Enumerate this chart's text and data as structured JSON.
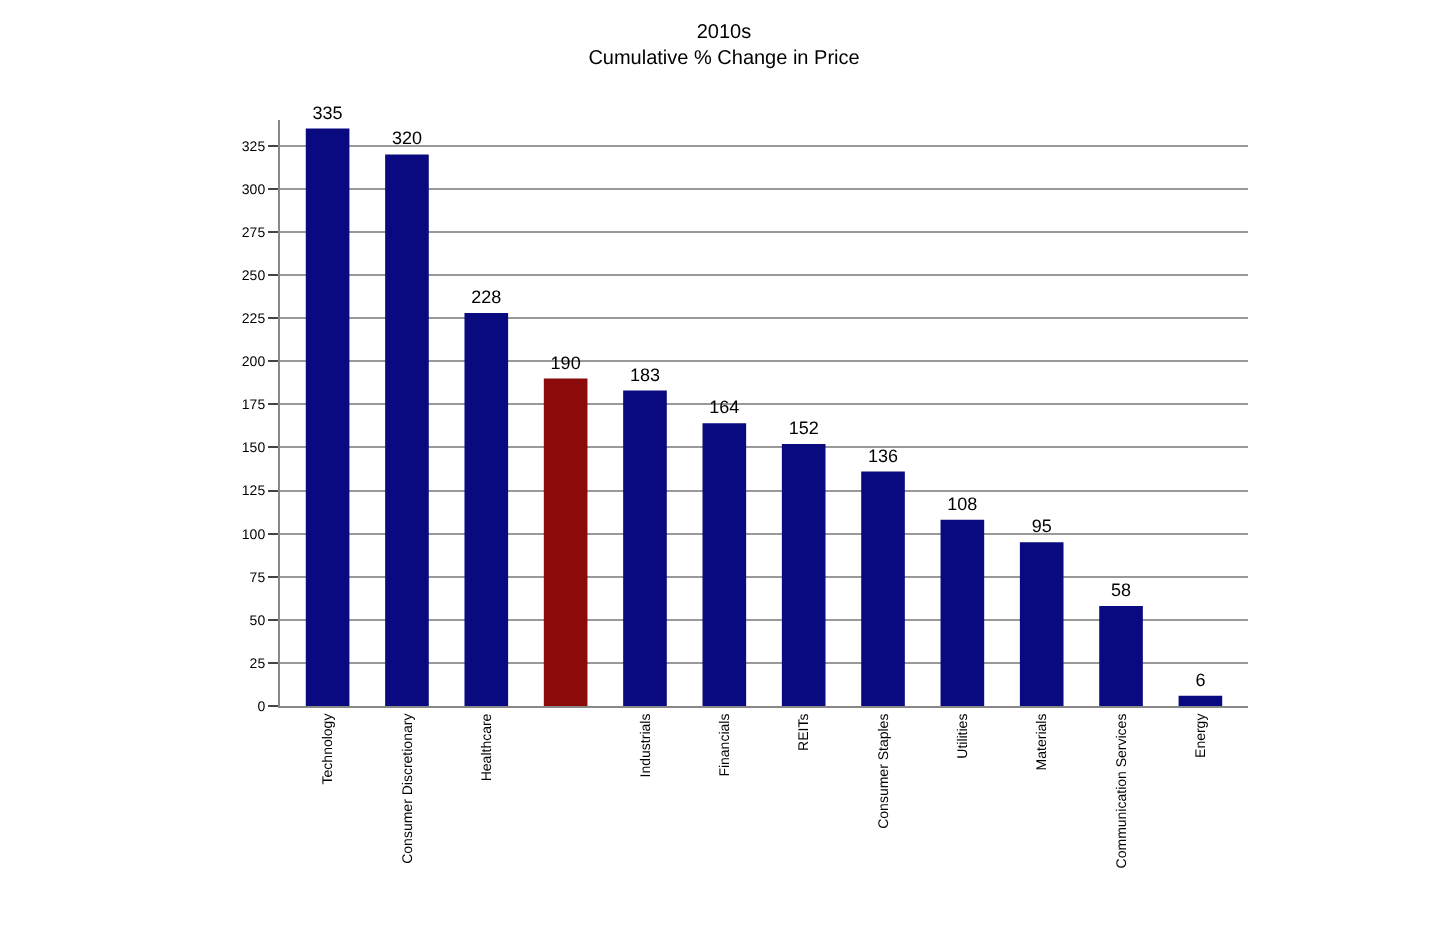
{
  "chart_data": {
    "type": "bar",
    "title": "2010s",
    "subtitle": "Cumulative % Change in Price",
    "categories": [
      "Technology",
      "Consumer Discretionary",
      "Healthcare",
      null,
      "Industrials",
      "Financials",
      "REITs",
      "Consumer Staples",
      "Utilities",
      "Materials",
      "Communication Services",
      "Energy"
    ],
    "values": [
      335,
      320,
      228,
      190,
      183,
      164,
      152,
      136,
      108,
      95,
      58,
      6
    ],
    "colors": [
      "#0a0a80",
      "#0a0a80",
      "#0a0a80",
      "#8b0a0a",
      "#0a0a80",
      "#0a0a80",
      "#0a0a80",
      "#0a0a80",
      "#0a0a80",
      "#0a0a80",
      "#0a0a80",
      "#0a0a80"
    ],
    "ylim": [
      0,
      340
    ],
    "yticks": [
      0,
      25,
      50,
      75,
      100,
      125,
      150,
      175,
      200,
      225,
      250,
      275,
      300,
      325
    ],
    "grid": "y",
    "data_labels": true,
    "legend": false
  }
}
